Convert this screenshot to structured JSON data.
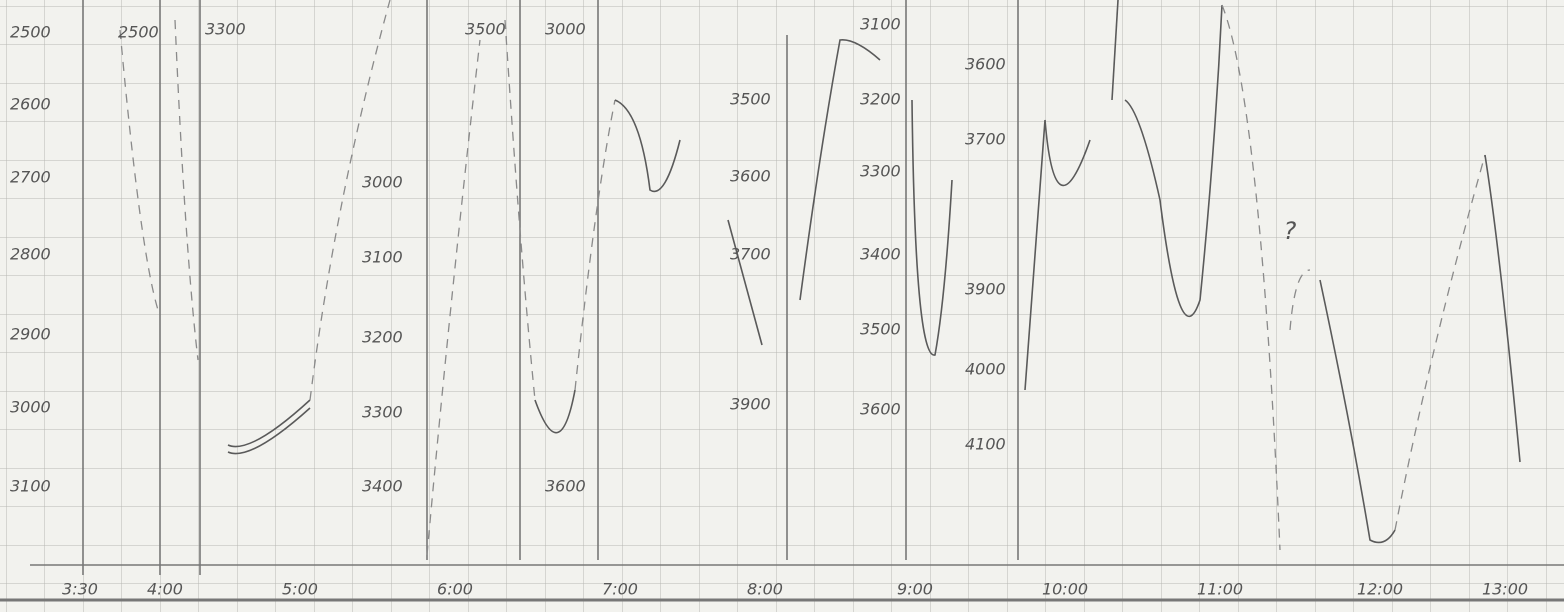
{
  "scales": {
    "a": [
      "2500",
      "2600",
      "2700",
      "2800",
      "2900",
      "3000",
      "3100"
    ],
    "b": [
      "2500",
      "3300"
    ],
    "c": [
      "3000",
      "3100",
      "3200",
      "3300",
      "3400"
    ],
    "d": [
      "3500",
      "3000",
      "3600"
    ],
    "e": [
      "3500",
      "3600",
      "3700",
      "3900"
    ],
    "f": [
      "3100",
      "3200",
      "3300",
      "3400",
      "3500",
      "3600"
    ],
    "g": [
      "3600",
      "3700",
      "3900",
      "4000",
      "4100"
    ]
  },
  "note": "?",
  "times": [
    "3:30",
    "4:00",
    "5:00",
    "6:00",
    "7:00",
    "8:00",
    "9:00",
    "10:00",
    "11:00",
    "12:00",
    "13:00"
  ]
}
